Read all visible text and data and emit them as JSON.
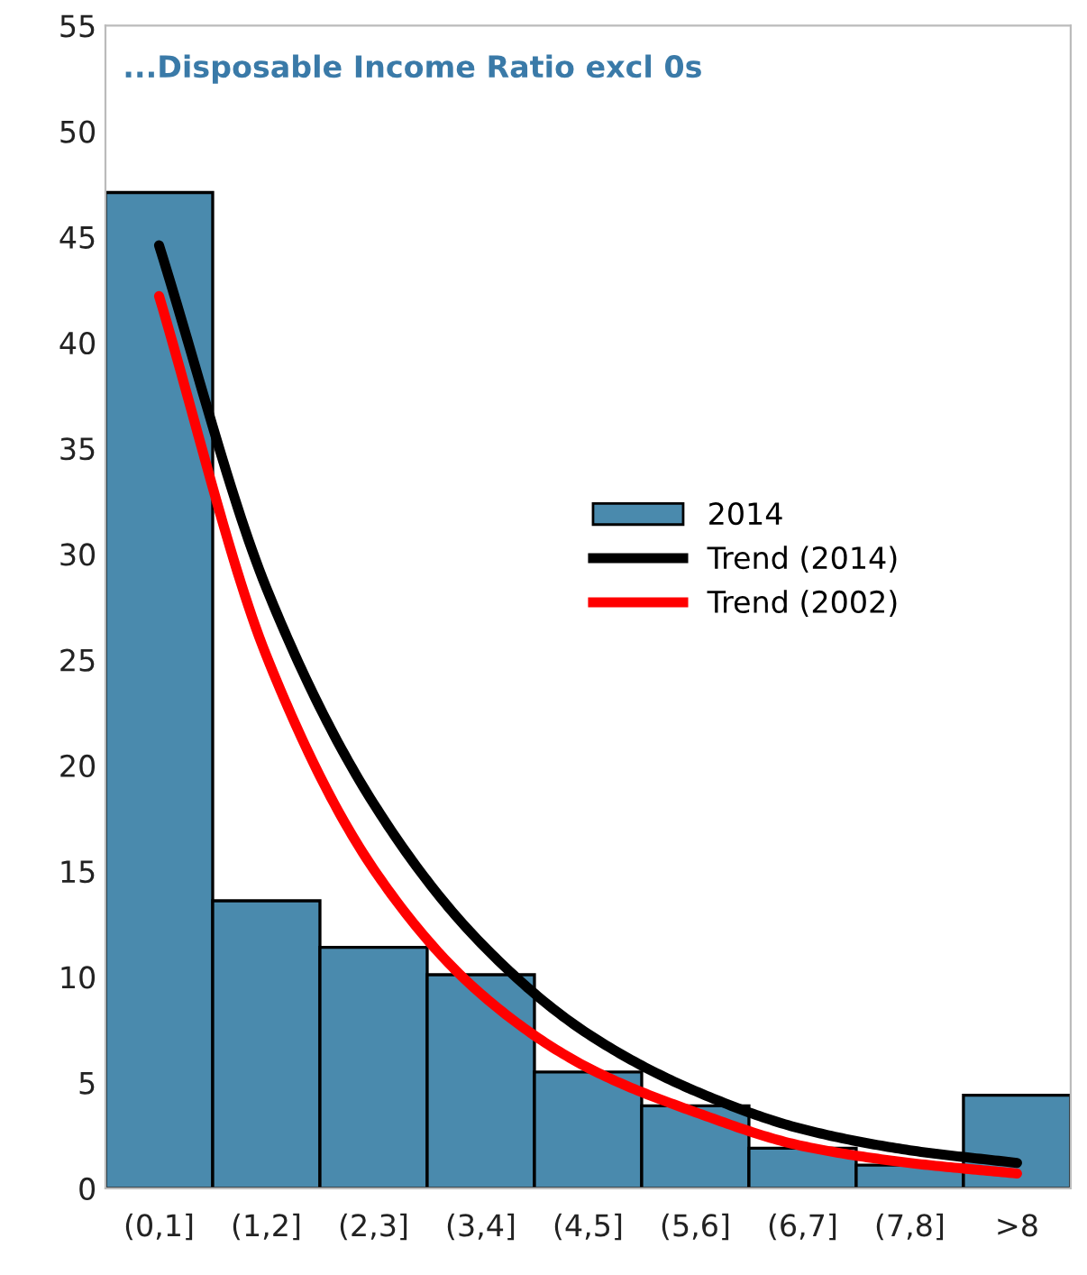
{
  "chart_data": {
    "type": "bar",
    "title": "...Disposable Income Ratio excl 0s",
    "categories": [
      "(0,1]",
      "(1,2]",
      "(2,3]",
      "(3,4]",
      "(4,5]",
      "(5,6]",
      "(6,7]",
      "(7,8]",
      ">8"
    ],
    "series": [
      {
        "name": "2014",
        "color": "#4a8aad",
        "values": [
          47.1,
          13.6,
          11.4,
          10.1,
          5.5,
          3.9,
          1.9,
          1.1,
          4.4
        ]
      },
      {
        "name": "Trend (2014)",
        "type": "line",
        "color": "#000000",
        "values": [
          44.6,
          28.4,
          18.2,
          11.6,
          7.3,
          4.6,
          2.8,
          1.8,
          1.2
        ]
      },
      {
        "name": "Trend (2002)",
        "type": "line",
        "color": "#ff0000",
        "values": [
          42.2,
          25.2,
          15.1,
          9.2,
          5.7,
          3.6,
          2.0,
          1.2,
          0.7
        ]
      }
    ],
    "ylim": [
      0,
      55
    ],
    "yticks": [
      0,
      5,
      10,
      15,
      20,
      25,
      30,
      35,
      40,
      45,
      50,
      55
    ],
    "grid": false,
    "legend": "center right",
    "marker": "none",
    "line_style": "solid"
  }
}
